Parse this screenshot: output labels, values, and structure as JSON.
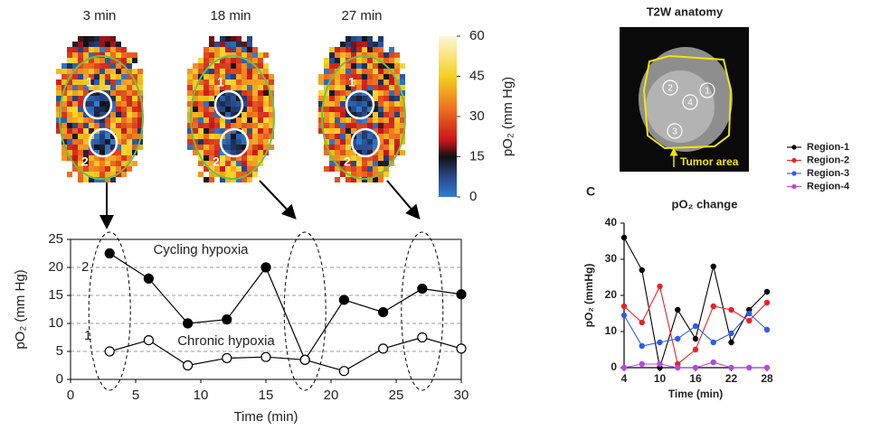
{
  "chart_data": [
    {
      "type": "heatmap",
      "panels": [
        "3 min",
        "18 min",
        "27 min"
      ],
      "roi_labels": [
        "1",
        "2"
      ],
      "zlabel": "pO₂ (mm Hg)",
      "zlim": [
        0,
        60
      ],
      "zticks": [
        0,
        15,
        30,
        45,
        60
      ]
    },
    {
      "type": "line",
      "x": [
        3,
        6,
        9,
        12,
        15,
        18,
        21,
        24,
        27,
        30
      ],
      "series": [
        {
          "name": "2",
          "color": "#000000",
          "marker": "filled",
          "values": [
            22.5,
            18,
            10,
            10.7,
            20,
            3.5,
            14.2,
            12,
            16.2,
            15.2
          ]
        },
        {
          "name": "1",
          "color": "#000000",
          "marker": "open",
          "values": [
            5,
            7,
            2.5,
            3.8,
            4,
            3.5,
            1.5,
            5.5,
            7.5,
            5.5
          ]
        }
      ],
      "annotations": [
        "Cycling hypoxia",
        "Chronic hypoxia"
      ],
      "highlight_x": [
        3,
        18,
        27
      ],
      "xlabel": "Time (min)",
      "ylabel": "pO₂ (mm Hg)",
      "xlim": [
        0,
        30
      ],
      "xticks": [
        0,
        5,
        10,
        15,
        20,
        25,
        30
      ],
      "ylim": [
        0,
        25
      ],
      "yticks": [
        0,
        5,
        10,
        15,
        20,
        25
      ],
      "grid": true
    },
    {
      "type": "image",
      "title": "T2W anatomy",
      "region_labels": [
        "1",
        "2",
        "3",
        "4"
      ],
      "annotation": "Tumor area"
    },
    {
      "type": "line",
      "panel_label": "C",
      "title": "pO₂ change",
      "x": [
        4,
        7,
        10,
        13,
        16,
        19,
        22,
        25,
        28
      ],
      "series": [
        {
          "name": "Region-1",
          "color": "#000000",
          "marker": "filled",
          "values": [
            36,
            27,
            0,
            16,
            8,
            28,
            7,
            16,
            21
          ]
        },
        {
          "name": "Region-2",
          "color": "#e8232a",
          "marker": "filled",
          "values": [
            17,
            12.5,
            22.5,
            1,
            5,
            17,
            16,
            13,
            18
          ]
        },
        {
          "name": "Region-3",
          "color": "#2f5be8",
          "marker": "filled",
          "values": [
            14.5,
            6,
            7,
            8,
            11.5,
            7,
            9.5,
            15,
            10.5
          ]
        },
        {
          "name": "Region-4",
          "color": "#b548e0",
          "marker": "filled",
          "values": [
            0,
            1,
            1,
            0,
            0,
            1.5,
            0,
            0,
            0
          ]
        }
      ],
      "xlabel": "Time (min)",
      "ylabel": "pO₂ (mmHg)",
      "xlim": [
        4,
        28
      ],
      "xticks": [
        4,
        10,
        16,
        22,
        28
      ],
      "ylim": [
        0,
        40
      ],
      "yticks": [
        0,
        10,
        20,
        30,
        40
      ],
      "grid": false,
      "legend": "top-right"
    }
  ]
}
